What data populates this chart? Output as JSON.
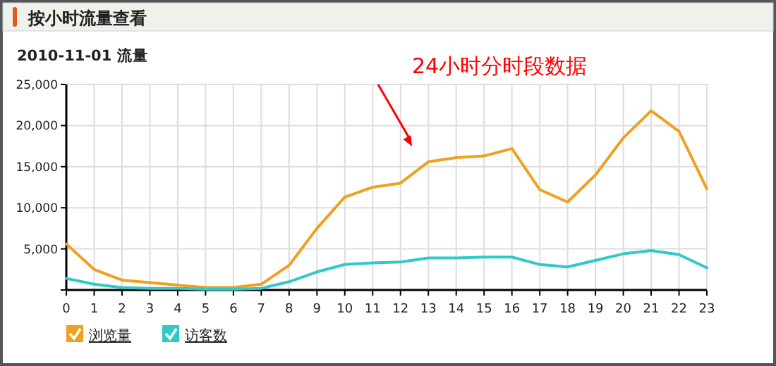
{
  "chart_data": {
    "type": "line",
    "title": "按小时流量查看",
    "subtitle": "2010-11-01 流量",
    "annotations": [
      "24小时分时段数据"
    ],
    "x": [
      0,
      1,
      2,
      3,
      4,
      5,
      6,
      7,
      8,
      9,
      10,
      11,
      12,
      13,
      14,
      15,
      16,
      17,
      18,
      19,
      20,
      21,
      22,
      23
    ],
    "series": [
      {
        "name": "浏览量",
        "color": "#f0a020",
        "values": [
          5600,
          2500,
          1200,
          900,
          600,
          300,
          300,
          700,
          3000,
          7500,
          11300,
          12500,
          13000,
          15600,
          16100,
          16300,
          17200,
          12200,
          10700,
          14000,
          18500,
          21800,
          19300,
          12300
        ]
      },
      {
        "name": "访客数",
        "color": "#30c8c8",
        "values": [
          1400,
          700,
          300,
          200,
          200,
          100,
          100,
          200,
          1000,
          2200,
          3100,
          3300,
          3400,
          3900,
          3900,
          4000,
          4000,
          3100,
          2800,
          3600,
          4400,
          4800,
          4300,
          2700
        ]
      }
    ],
    "xlim": [
      0,
      23
    ],
    "xticks": [
      0,
      1,
      2,
      3,
      4,
      5,
      6,
      7,
      8,
      9,
      10,
      11,
      12,
      13,
      14,
      15,
      16,
      17,
      18,
      19,
      20,
      21,
      22,
      23
    ],
    "ylim": [
      0,
      25000
    ],
    "yticks": [
      {
        "value": 0,
        "label": null
      },
      {
        "value": 5000,
        "label": "5,000"
      },
      {
        "value": 10000,
        "label": "10,000"
      },
      {
        "value": 15000,
        "label": "15,000"
      },
      {
        "value": 20000,
        "label": "20,000"
      },
      {
        "value": 25000,
        "label": "25,000"
      }
    ],
    "grid": true,
    "legend": "bottom left",
    "marker": "none",
    "line_style": "solid"
  }
}
